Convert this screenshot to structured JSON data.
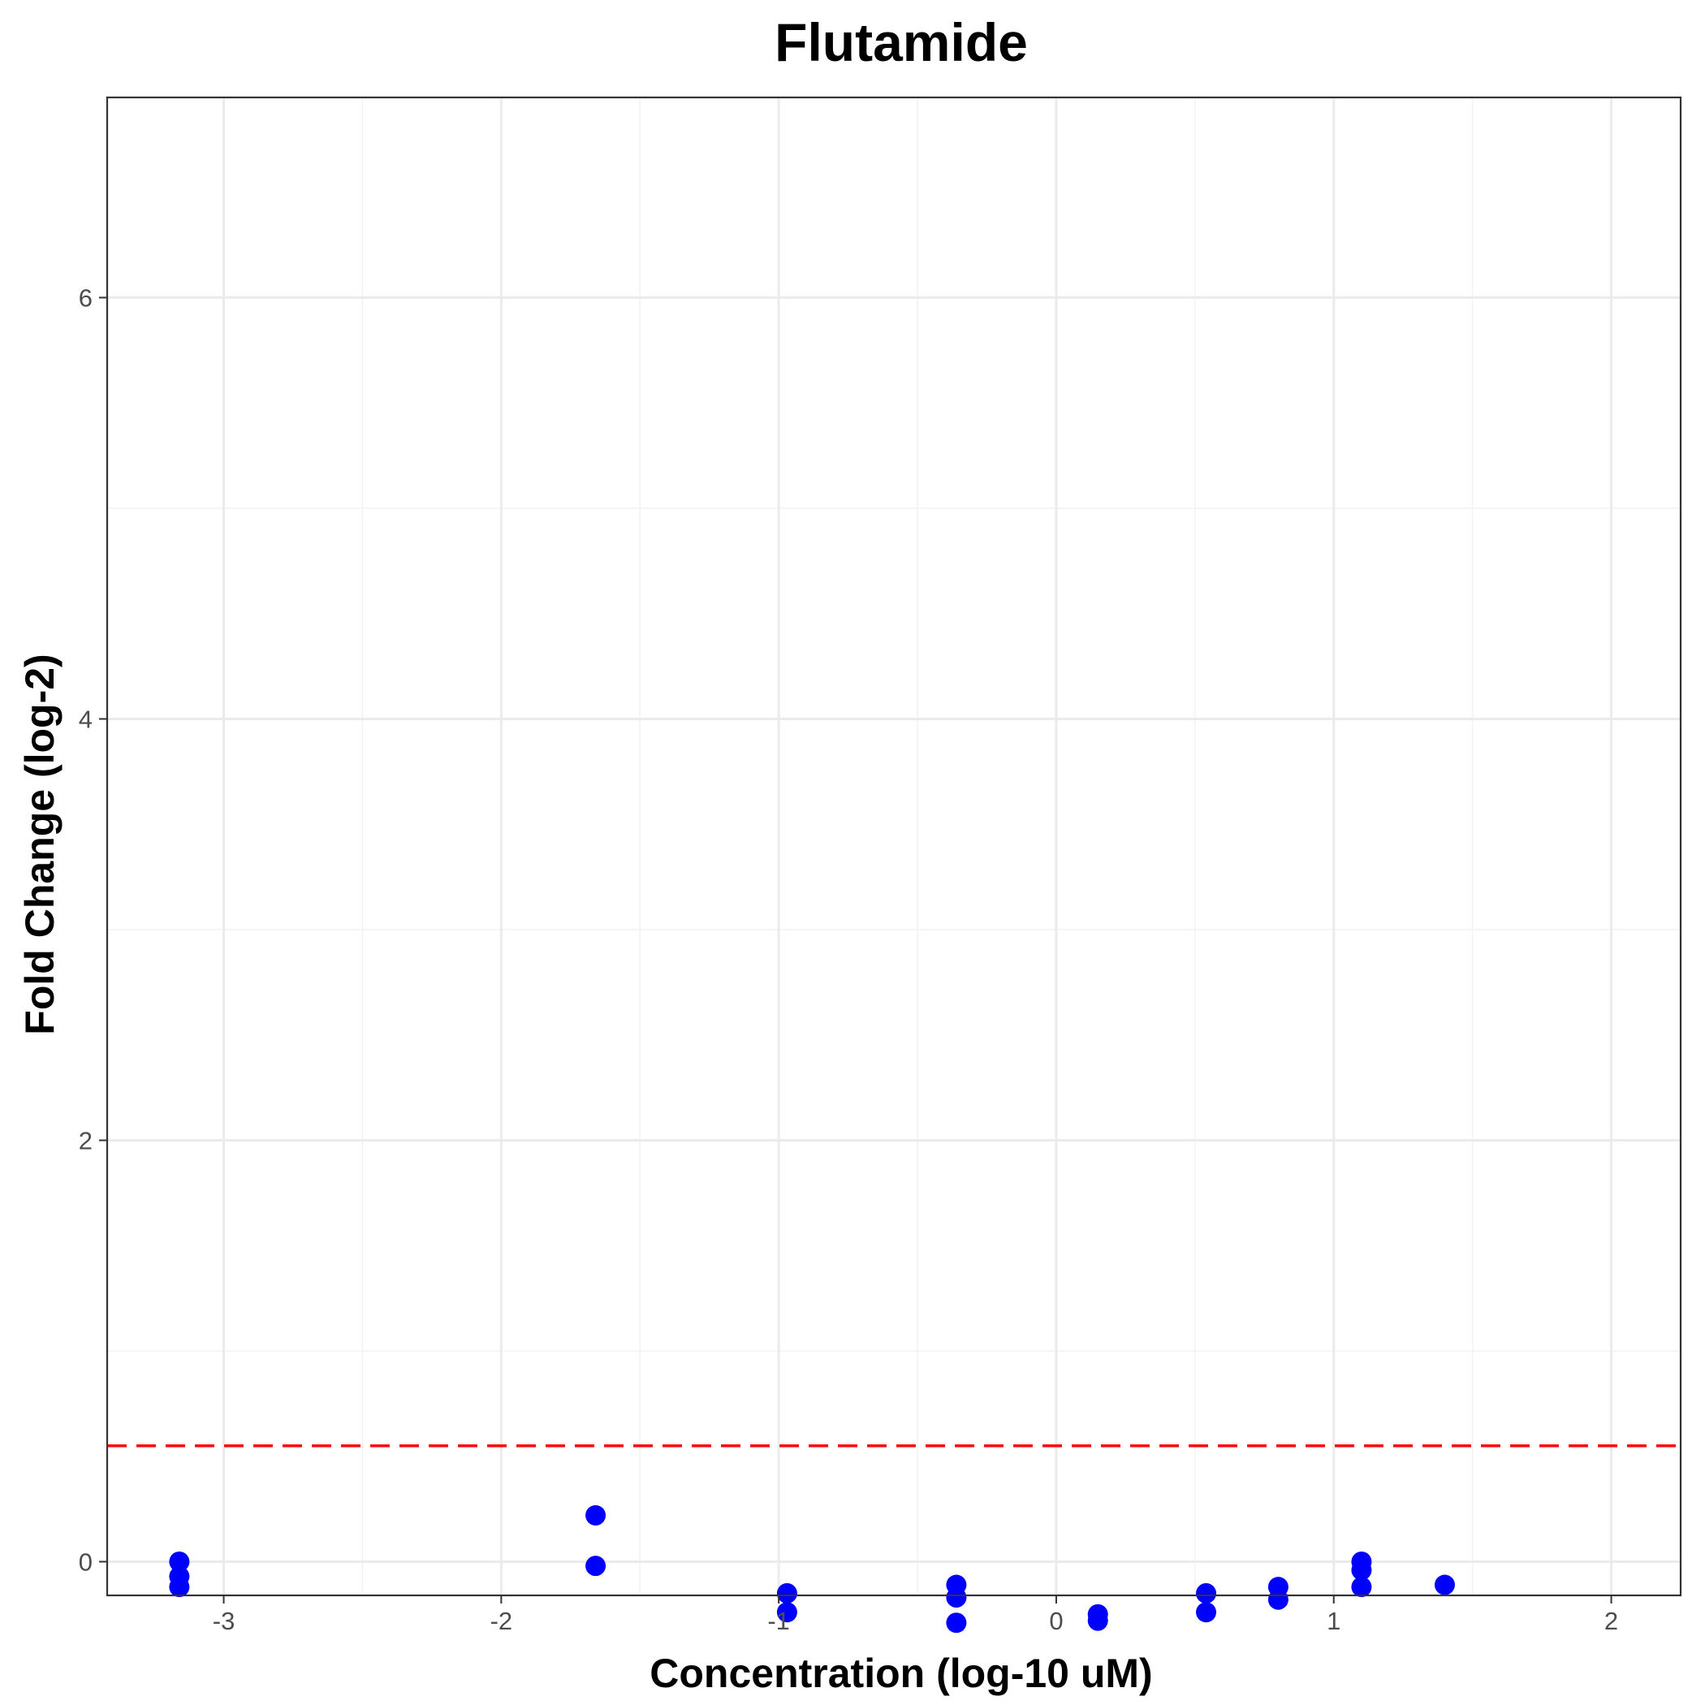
{
  "chart_data": {
    "type": "scatter",
    "title": "Flutamide",
    "xlabel": "Concentration (log-10 uM)",
    "ylabel": "Fold Change (log-2)",
    "xlim": [
      -3.42,
      2.25
    ],
    "ylim": [
      -0.16,
      6.95
    ],
    "x_ticks": [
      -3,
      -2,
      -1,
      0,
      1,
      2
    ],
    "y_ticks": [
      0,
      2,
      4,
      6
    ],
    "grid": true,
    "threshold": {
      "y": 0.55,
      "color": "#ff0000",
      "style": "dashed"
    },
    "point_color": "#0000ff",
    "points": [
      {
        "x": -3.16,
        "y": 0.0
      },
      {
        "x": -3.16,
        "y": -0.07
      },
      {
        "x": -3.16,
        "y": -0.12
      },
      {
        "x": -1.66,
        "y": 0.22
      },
      {
        "x": -1.66,
        "y": -0.02
      },
      {
        "x": -0.97,
        "y": -0.15
      },
      {
        "x": -0.97,
        "y": -0.24
      },
      {
        "x": -0.36,
        "y": -0.11
      },
      {
        "x": -0.36,
        "y": -0.17
      },
      {
        "x": -0.36,
        "y": -0.29
      },
      {
        "x": 0.15,
        "y": -0.25
      },
      {
        "x": 0.15,
        "y": -0.28
      },
      {
        "x": 0.54,
        "y": -0.15
      },
      {
        "x": 0.54,
        "y": -0.24
      },
      {
        "x": 0.8,
        "y": -0.12
      },
      {
        "x": 0.8,
        "y": -0.18
      },
      {
        "x": 1.1,
        "y": 0.0
      },
      {
        "x": 1.1,
        "y": -0.04
      },
      {
        "x": 1.1,
        "y": -0.12
      },
      {
        "x": 1.4,
        "y": -0.11
      }
    ]
  }
}
